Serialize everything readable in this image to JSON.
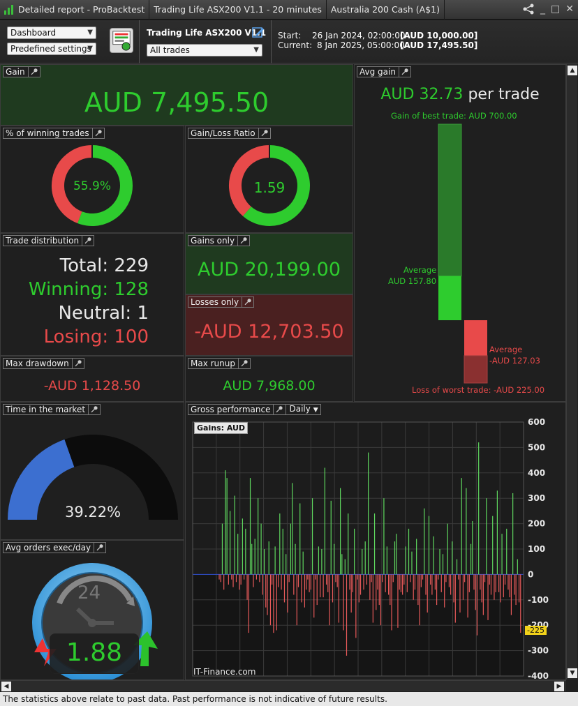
{
  "titlebar": {
    "tabs": [
      "Detailed report - ProBacktest",
      "Trading Life ASX200 V1.1 - 20 minutes",
      "Australia 200 Cash (A$1)"
    ],
    "controls": [
      "_",
      "□",
      "✕"
    ]
  },
  "toolbar": {
    "view_select": "Dashboard",
    "settings_select": "Predefined settings",
    "system_name": "Trading Life ASX200 V1.1",
    "trades_select": "All trades",
    "start_label": "Start:",
    "start_date": "26 Jan 2024, 02:00:00",
    "start_capital": "[AUD 10,000.00]",
    "current_label": "Current:",
    "current_date": "8 Jan 2025, 05:00:00",
    "current_capital": "[AUD 17,495.50]"
  },
  "gain": {
    "title": "Gain",
    "value": "AUD 7,495.50"
  },
  "winning_pct": {
    "title": "% of winning trades",
    "label": "55.9%",
    "fraction": 0.559
  },
  "gain_loss_ratio": {
    "title": "Gain/Loss Ratio",
    "label": "1.59",
    "fraction": 0.614
  },
  "avg_gain": {
    "title": "Avg gain",
    "value": "AUD 32.73",
    "suffix": "per trade",
    "best_label": "Gain of best trade: AUD 700.00",
    "avg_win_label": "Average",
    "avg_win_value": "AUD 157.80",
    "avg_loss_label": "Average",
    "avg_loss_value": "-AUD 127.03",
    "worst_label": "Loss of worst trade: -AUD 225.00",
    "best": 700,
    "avg_win": 157.8,
    "avg_loss": 127.03,
    "worst": 225
  },
  "distribution": {
    "title": "Trade distribution",
    "total": "Total: 229",
    "winning": "Winning: 128",
    "neutral": "Neutral: 1",
    "losing": "Losing: 100"
  },
  "gains_only": {
    "title": "Gains only",
    "value": "AUD 20,199.00"
  },
  "losses_only": {
    "title": "Losses only",
    "value": "-AUD 12,703.50"
  },
  "max_drawdown": {
    "title": "Max drawdown",
    "value": "-AUD 1,128.50"
  },
  "max_runup": {
    "title": "Max runup",
    "value": "AUD 7,968.00"
  },
  "time_in_market": {
    "title": "Time in the market",
    "label": "39.22%",
    "fraction": 0.3922
  },
  "avg_orders": {
    "title": "Avg orders exec/day",
    "value": "1.88",
    "clock_label": "24"
  },
  "gross_performance": {
    "title": "Gross performance",
    "period_select": "Daily",
    "legend": "Gains: AUD",
    "watermark": "IT-Finance.com",
    "marker_label": "-225"
  },
  "chart_data": {
    "type": "bar",
    "title": "Gains: AUD",
    "ylim": [
      -400,
      600
    ],
    "yticks": [
      600,
      500,
      400,
      300,
      200,
      100,
      0,
      -100,
      -200,
      -300,
      -400
    ],
    "grid": true,
    "values": [
      -20,
      -30,
      200,
      -60,
      410,
      380,
      -40,
      250,
      -20,
      -50,
      310,
      -30,
      160,
      -60,
      -40,
      220,
      -20,
      180,
      -100,
      -230,
      380,
      120,
      -50,
      140,
      -20,
      300,
      -30,
      200,
      -80,
      100,
      -130,
      -160,
      130,
      -200,
      -40,
      -230,
      110,
      -220,
      -50,
      240,
      -60,
      180,
      -110,
      80,
      -150,
      -30,
      200,
      360,
      -80,
      120,
      -200,
      -50,
      280,
      -110,
      90,
      -130,
      -60,
      -20,
      -70,
      -60,
      300,
      -170,
      -20,
      -120,
      110,
      -90,
      100,
      -90,
      420,
      -40,
      -70,
      -200,
      290,
      -110,
      120,
      -30,
      -50,
      -190,
      340,
      80,
      -220,
      60,
      -320,
      240,
      -60,
      -150,
      -70,
      180,
      -250,
      -20,
      -110,
      -80,
      100,
      -60,
      130,
      -40,
      480,
      -100,
      -30,
      -190,
      240,
      -140,
      -60,
      -120,
      -200,
      -30,
      300,
      -70,
      110,
      -80,
      -120,
      -220,
      -30,
      130,
      160,
      -210,
      -60,
      -70,
      -80,
      -40,
      110,
      -70,
      180,
      -30,
      90,
      -100,
      -60,
      140,
      -120,
      -200,
      -50,
      -20,
      260,
      -80,
      -150,
      230,
      -40,
      -80,
      150,
      -60,
      -120,
      -20,
      100,
      -70,
      80,
      -130,
      -30,
      200,
      -50,
      -80,
      130,
      -110,
      -190,
      60,
      -20,
      -150,
      380,
      -100,
      -30,
      340,
      -170,
      -70,
      120,
      210,
      -60,
      -140,
      -240,
      520,
      -60,
      -110,
      -160,
      -30,
      300,
      -180,
      -40,
      -80,
      230,
      -100,
      -70,
      330,
      -70,
      -110,
      160,
      -90,
      -40,
      180,
      -60,
      -90,
      -160,
      320,
      -80,
      -120,
      60,
      -110,
      -230
    ]
  },
  "footer": {
    "text": "The statistics above relate to past data. Past performance is not indicative of future results."
  },
  "colors": {
    "green": "#2ecc2e",
    "red": "#e84a4a",
    "blue": "#3c6fd0",
    "dark_green_bg": "#1f3a1f",
    "dark_red_bg": "#4a2020"
  }
}
